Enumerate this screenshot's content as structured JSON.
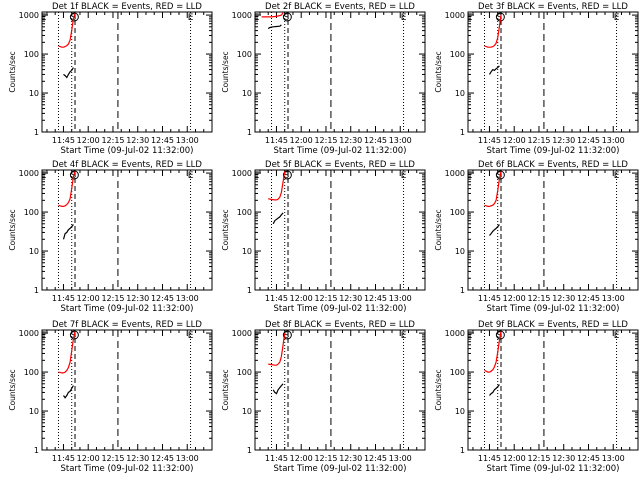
{
  "chart_data": [
    {
      "type": "line",
      "title": "Det 1f BLACK = Events, RED = LLD",
      "xlabel": "Start Time (09-Jul-02 11:32:00)",
      "ylabel": "Counts/sec",
      "x_ticks": [
        "11:45",
        "12:00",
        "12:15",
        "12:30",
        "12:45",
        "13:00"
      ],
      "y_ticks": [
        "1",
        "10",
        "100",
        "1000"
      ],
      "yscale": "log",
      "ylim": [
        1,
        1200
      ],
      "markers": [
        "E",
        "S",
        "E"
      ],
      "series": [
        {
          "color": "#ff0000",
          "points": [
            [
              "11:42",
              160
            ],
            [
              "11:43",
              155
            ],
            [
              "11:44",
              150
            ],
            [
              "11:45",
              150
            ],
            [
              "11:46",
              155
            ],
            [
              "11:47",
              165
            ],
            [
              "11:48",
              180
            ],
            [
              "11:49",
              230
            ],
            [
              "11:50",
              400
            ],
            [
              "11:51",
              800
            ],
            [
              "11:52",
              1100
            ]
          ]
        },
        {
          "color": "#000000",
          "points": [
            [
              "11:45",
              30
            ],
            [
              "11:46",
              28
            ],
            [
              "11:47",
              25
            ],
            [
              "11:48",
              30
            ],
            [
              "11:49",
              35
            ],
            [
              "11:50",
              38
            ],
            [
              "11:51",
              45
            ]
          ]
        }
      ]
    },
    {
      "type": "line",
      "title": "Det 2f BLACK = Events, RED = LLD",
      "xlabel": "Start Time (09-Jul-02 11:32:00)",
      "ylabel": "Counts/sec",
      "x_ticks": [
        "11:45",
        "12:00",
        "12:15",
        "12:30",
        "12:45",
        "13:00"
      ],
      "y_ticks": [
        "1",
        "10",
        "100",
        "1000"
      ],
      "yscale": "log",
      "ylim": [
        1,
        1200
      ],
      "markers": [
        "E",
        "S",
        "E"
      ],
      "series": [
        {
          "color": "#ff0000",
          "points": [
            [
              "11:36",
              900
            ],
            [
              "11:38",
              900
            ],
            [
              "11:40",
              900
            ],
            [
              "11:42",
              900
            ],
            [
              "11:44",
              920
            ],
            [
              "11:46",
              950
            ],
            [
              "11:48",
              1000
            ],
            [
              "11:49",
              1150
            ]
          ]
        },
        {
          "color": "#000000",
          "points": [
            [
              "11:40",
              450
            ],
            [
              "11:41",
              480
            ],
            [
              "11:43",
              500
            ],
            [
              "11:45",
              510
            ],
            [
              "11:47",
              520
            ],
            [
              "11:48",
              560
            ]
          ]
        }
      ]
    },
    {
      "type": "line",
      "title": "Det 3f BLACK = Events, RED = LLD",
      "xlabel": "Start Time (09-Jul-02 11:32:00)",
      "ylabel": "Counts/sec",
      "x_ticks": [
        "11:45",
        "12:00",
        "12:15",
        "12:30",
        "12:45",
        "13:00"
      ],
      "y_ticks": [
        "1",
        "10",
        "100",
        "1000"
      ],
      "yscale": "log",
      "ylim": [
        1,
        1200
      ],
      "markers": [
        "E",
        "S",
        "E"
      ],
      "series": [
        {
          "color": "#ff0000",
          "points": [
            [
              "11:42",
              160
            ],
            [
              "11:43",
              155
            ],
            [
              "11:44",
              150
            ],
            [
              "11:45",
              150
            ],
            [
              "11:46",
              150
            ],
            [
              "11:47",
              155
            ],
            [
              "11:48",
              165
            ],
            [
              "11:49",
              190
            ],
            [
              "11:50",
              260
            ],
            [
              "11:51",
              500
            ],
            [
              "11:52",
              1000
            ]
          ]
        },
        {
          "color": "#000000",
          "points": [
            [
              "11:45",
              30
            ],
            [
              "11:46",
              35
            ],
            [
              "11:47",
              40
            ],
            [
              "11:48",
              38
            ],
            [
              "11:49",
              42
            ],
            [
              "11:50",
              45
            ],
            [
              "11:51",
              50
            ]
          ]
        }
      ]
    },
    {
      "type": "line",
      "title": "Det 4f BLACK = Events, RED = LLD",
      "xlabel": "Start Time (09-Jul-02 11:32:00)",
      "ylabel": "Counts/sec",
      "x_ticks": [
        "11:45",
        "12:00",
        "12:15",
        "12:30",
        "12:45",
        "13:00"
      ],
      "y_ticks": [
        "1",
        "10",
        "100",
        "1000"
      ],
      "yscale": "log",
      "ylim": [
        1,
        1200
      ],
      "markers": [
        "E",
        "S",
        "E"
      ],
      "series": [
        {
          "color": "#ff0000",
          "points": [
            [
              "11:42",
              150
            ],
            [
              "11:43",
              145
            ],
            [
              "11:44",
              140
            ],
            [
              "11:45",
              140
            ],
            [
              "11:46",
              145
            ],
            [
              "11:47",
              155
            ],
            [
              "11:48",
              175
            ],
            [
              "11:49",
              220
            ],
            [
              "11:50",
              400
            ],
            [
              "11:51",
              800
            ],
            [
              "11:52",
              1100
            ]
          ]
        },
        {
          "color": "#000000",
          "points": [
            [
              "11:45",
              20
            ],
            [
              "11:46",
              28
            ],
            [
              "11:47",
              30
            ],
            [
              "11:48",
              35
            ],
            [
              "11:49",
              38
            ],
            [
              "11:50",
              42
            ],
            [
              "11:51",
              48
            ]
          ]
        }
      ]
    },
    {
      "type": "line",
      "title": "Det 5f BLACK = Events, RED = LLD",
      "xlabel": "Start Time (09-Jul-02 11:32:00)",
      "ylabel": "Counts/sec",
      "x_ticks": [
        "11:45",
        "12:00",
        "12:15",
        "12:30",
        "12:45",
        "13:00"
      ],
      "y_ticks": [
        "1",
        "10",
        "100",
        "1000"
      ],
      "yscale": "log",
      "ylim": [
        1,
        1200
      ],
      "markers": [
        "E",
        "S",
        "E"
      ],
      "series": [
        {
          "color": "#ff0000",
          "points": [
            [
              "11:40",
              220
            ],
            [
              "11:42",
              210
            ],
            [
              "11:44",
              205
            ],
            [
              "11:45",
              205
            ],
            [
              "11:46",
              215
            ],
            [
              "11:47",
              240
            ],
            [
              "11:48",
              320
            ],
            [
              "11:49",
              600
            ],
            [
              "11:50",
              1100
            ]
          ]
        },
        {
          "color": "#000000",
          "points": [
            [
              "11:43",
              50
            ],
            [
              "11:44",
              60
            ],
            [
              "11:45",
              65
            ],
            [
              "11:46",
              70
            ],
            [
              "11:47",
              75
            ],
            [
              "11:48",
              85
            ],
            [
              "11:49",
              95
            ]
          ]
        }
      ]
    },
    {
      "type": "line",
      "title": "Det 6f BLACK = Events, RED = LLD",
      "xlabel": "Start Time (09-Jul-02 11:32:00)",
      "ylabel": "Counts/sec",
      "x_ticks": [
        "11:45",
        "12:00",
        "12:15",
        "12:30",
        "12:45",
        "13:00"
      ],
      "y_ticks": [
        "1",
        "10",
        "100",
        "1000"
      ],
      "yscale": "log",
      "ylim": [
        1,
        1200
      ],
      "markers": [
        "E",
        "S",
        "E"
      ],
      "series": [
        {
          "color": "#ff0000",
          "points": [
            [
              "11:42",
              150
            ],
            [
              "11:43",
              145
            ],
            [
              "11:44",
              140
            ],
            [
              "11:45",
              140
            ],
            [
              "11:46",
              145
            ],
            [
              "11:47",
              150
            ],
            [
              "11:48",
              165
            ],
            [
              "11:49",
              200
            ],
            [
              "11:50",
              350
            ],
            [
              "11:51",
              700
            ],
            [
              "11:52",
              1100
            ]
          ]
        },
        {
          "color": "#000000",
          "points": [
            [
              "11:45",
              25
            ],
            [
              "11:46",
              28
            ],
            [
              "11:47",
              32
            ],
            [
              "11:48",
              35
            ],
            [
              "11:49",
              38
            ],
            [
              "11:50",
              42
            ],
            [
              "11:51",
              48
            ]
          ]
        }
      ]
    },
    {
      "type": "line",
      "title": "Det 7f BLACK = Events, RED = LLD",
      "xlabel": "Start Time (09-Jul-02 11:32:00)",
      "ylabel": "Counts/sec",
      "x_ticks": [
        "11:45",
        "12:00",
        "12:15",
        "12:30",
        "12:45",
        "13:00"
      ],
      "y_ticks": [
        "1",
        "10",
        "100",
        "1000"
      ],
      "yscale": "log",
      "ylim": [
        1,
        1200
      ],
      "markers": [
        "E",
        "S",
        "E"
      ],
      "series": [
        {
          "color": "#ff0000",
          "points": [
            [
              "11:42",
              100
            ],
            [
              "11:43",
              98
            ],
            [
              "11:44",
              95
            ],
            [
              "11:45",
              95
            ],
            [
              "11:46",
              100
            ],
            [
              "11:47",
              110
            ],
            [
              "11:48",
              130
            ],
            [
              "11:49",
              180
            ],
            [
              "11:50",
              350
            ],
            [
              "11:51",
              700
            ],
            [
              "11:52",
              1100
            ]
          ]
        },
        {
          "color": "#000000",
          "points": [
            [
              "11:45",
              25
            ],
            [
              "11:46",
              22
            ],
            [
              "11:47",
              25
            ],
            [
              "11:48",
              30
            ],
            [
              "11:49",
              32
            ],
            [
              "11:50",
              38
            ],
            [
              "11:51",
              45
            ]
          ]
        }
      ]
    },
    {
      "type": "line",
      "title": "Det 8f BLACK = Events, RED = LLD",
      "xlabel": "Start Time (09-Jul-02 11:32:00)",
      "ylabel": "Counts/sec",
      "x_ticks": [
        "11:45",
        "12:00",
        "12:15",
        "12:30",
        "12:45",
        "13:00"
      ],
      "y_ticks": [
        "1",
        "10",
        "100",
        "1000"
      ],
      "yscale": "log",
      "ylim": [
        1,
        1200
      ],
      "markers": [
        "E",
        "S",
        "E"
      ],
      "series": [
        {
          "color": "#ff0000",
          "points": [
            [
              "11:40",
              160
            ],
            [
              "11:42",
              155
            ],
            [
              "11:44",
              150
            ],
            [
              "11:45",
              150
            ],
            [
              "11:46",
              160
            ],
            [
              "11:47",
              180
            ],
            [
              "11:48",
              250
            ],
            [
              "11:49",
              500
            ],
            [
              "11:50",
              1000
            ]
          ]
        },
        {
          "color": "#000000",
          "points": [
            [
              "11:43",
              35
            ],
            [
              "11:44",
              30
            ],
            [
              "11:45",
              28
            ],
            [
              "11:46",
              35
            ],
            [
              "11:47",
              40
            ],
            [
              "11:48",
              45
            ],
            [
              "11:49",
              50
            ]
          ]
        }
      ]
    },
    {
      "type": "line",
      "title": "Det 9f BLACK = Events, RED = LLD",
      "xlabel": "Start Time (09-Jul-02 11:32:00)",
      "ylabel": "Counts/sec",
      "x_ticks": [
        "11:45",
        "12:00",
        "12:15",
        "12:30",
        "12:45",
        "13:00"
      ],
      "y_ticks": [
        "1",
        "10",
        "100",
        "1000"
      ],
      "yscale": "log",
      "ylim": [
        1,
        1200
      ],
      "markers": [
        "E",
        "S",
        "E"
      ],
      "series": [
        {
          "color": "#ff0000",
          "points": [
            [
              "11:42",
              110
            ],
            [
              "11:43",
              105
            ],
            [
              "11:44",
              100
            ],
            [
              "11:45",
              100
            ],
            [
              "11:46",
              105
            ],
            [
              "11:47",
              115
            ],
            [
              "11:48",
              135
            ],
            [
              "11:49",
              180
            ],
            [
              "11:50",
              320
            ],
            [
              "11:51",
              650
            ],
            [
              "11:52",
              1100
            ]
          ]
        },
        {
          "color": "#000000",
          "points": [
            [
              "11:45",
              25
            ],
            [
              "11:46",
              28
            ],
            [
              "11:47",
              30
            ],
            [
              "11:48",
              35
            ],
            [
              "11:49",
              38
            ],
            [
              "11:50",
              42
            ],
            [
              "11:51",
              48
            ]
          ]
        }
      ]
    }
  ]
}
